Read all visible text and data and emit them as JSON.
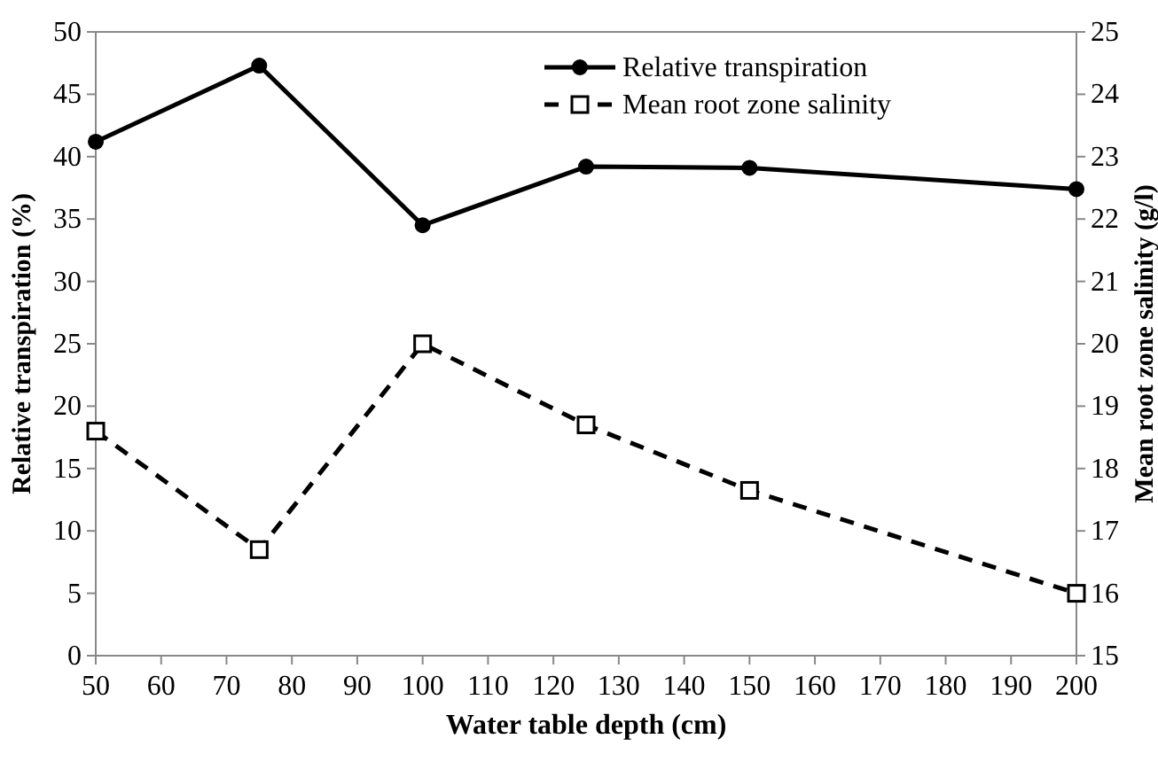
{
  "chart_data": {
    "type": "line",
    "xlabel": "Water table depth (cm)",
    "ylabel": "Relative transpiration (%)",
    "y2label": "Mean root zone salinity (g/l)",
    "x": [
      50,
      75,
      100,
      125,
      150,
      200
    ],
    "series": [
      {
        "name": "Relative transpiration",
        "color": "#000000",
        "values": [
          41.2,
          47.3,
          34.5,
          39.2,
          39.1,
          37.4
        ],
        "marker": "circle",
        "line_style": "solid"
      },
      {
        "name": "Mean root zone salinity",
        "color": "#000000",
        "values": [
          18.6,
          16.7,
          20.0,
          18.7,
          17.65,
          16.0
        ],
        "axis": "y2",
        "marker": "square",
        "line_style": "dashed"
      }
    ],
    "xlim": [
      50,
      200
    ],
    "xticks": [
      50,
      60,
      70,
      80,
      90,
      100,
      110,
      120,
      130,
      140,
      150,
      160,
      170,
      180,
      190,
      200
    ],
    "ylim": [
      0,
      50
    ],
    "yticks": [
      0,
      5,
      10,
      15,
      20,
      25,
      30,
      35,
      40,
      45,
      50
    ],
    "y2lim": [
      15,
      25
    ],
    "y2ticks": [
      15,
      16,
      17,
      18,
      19,
      20,
      21,
      22,
      23,
      24,
      25
    ],
    "grid": false,
    "legend": "top right"
  }
}
